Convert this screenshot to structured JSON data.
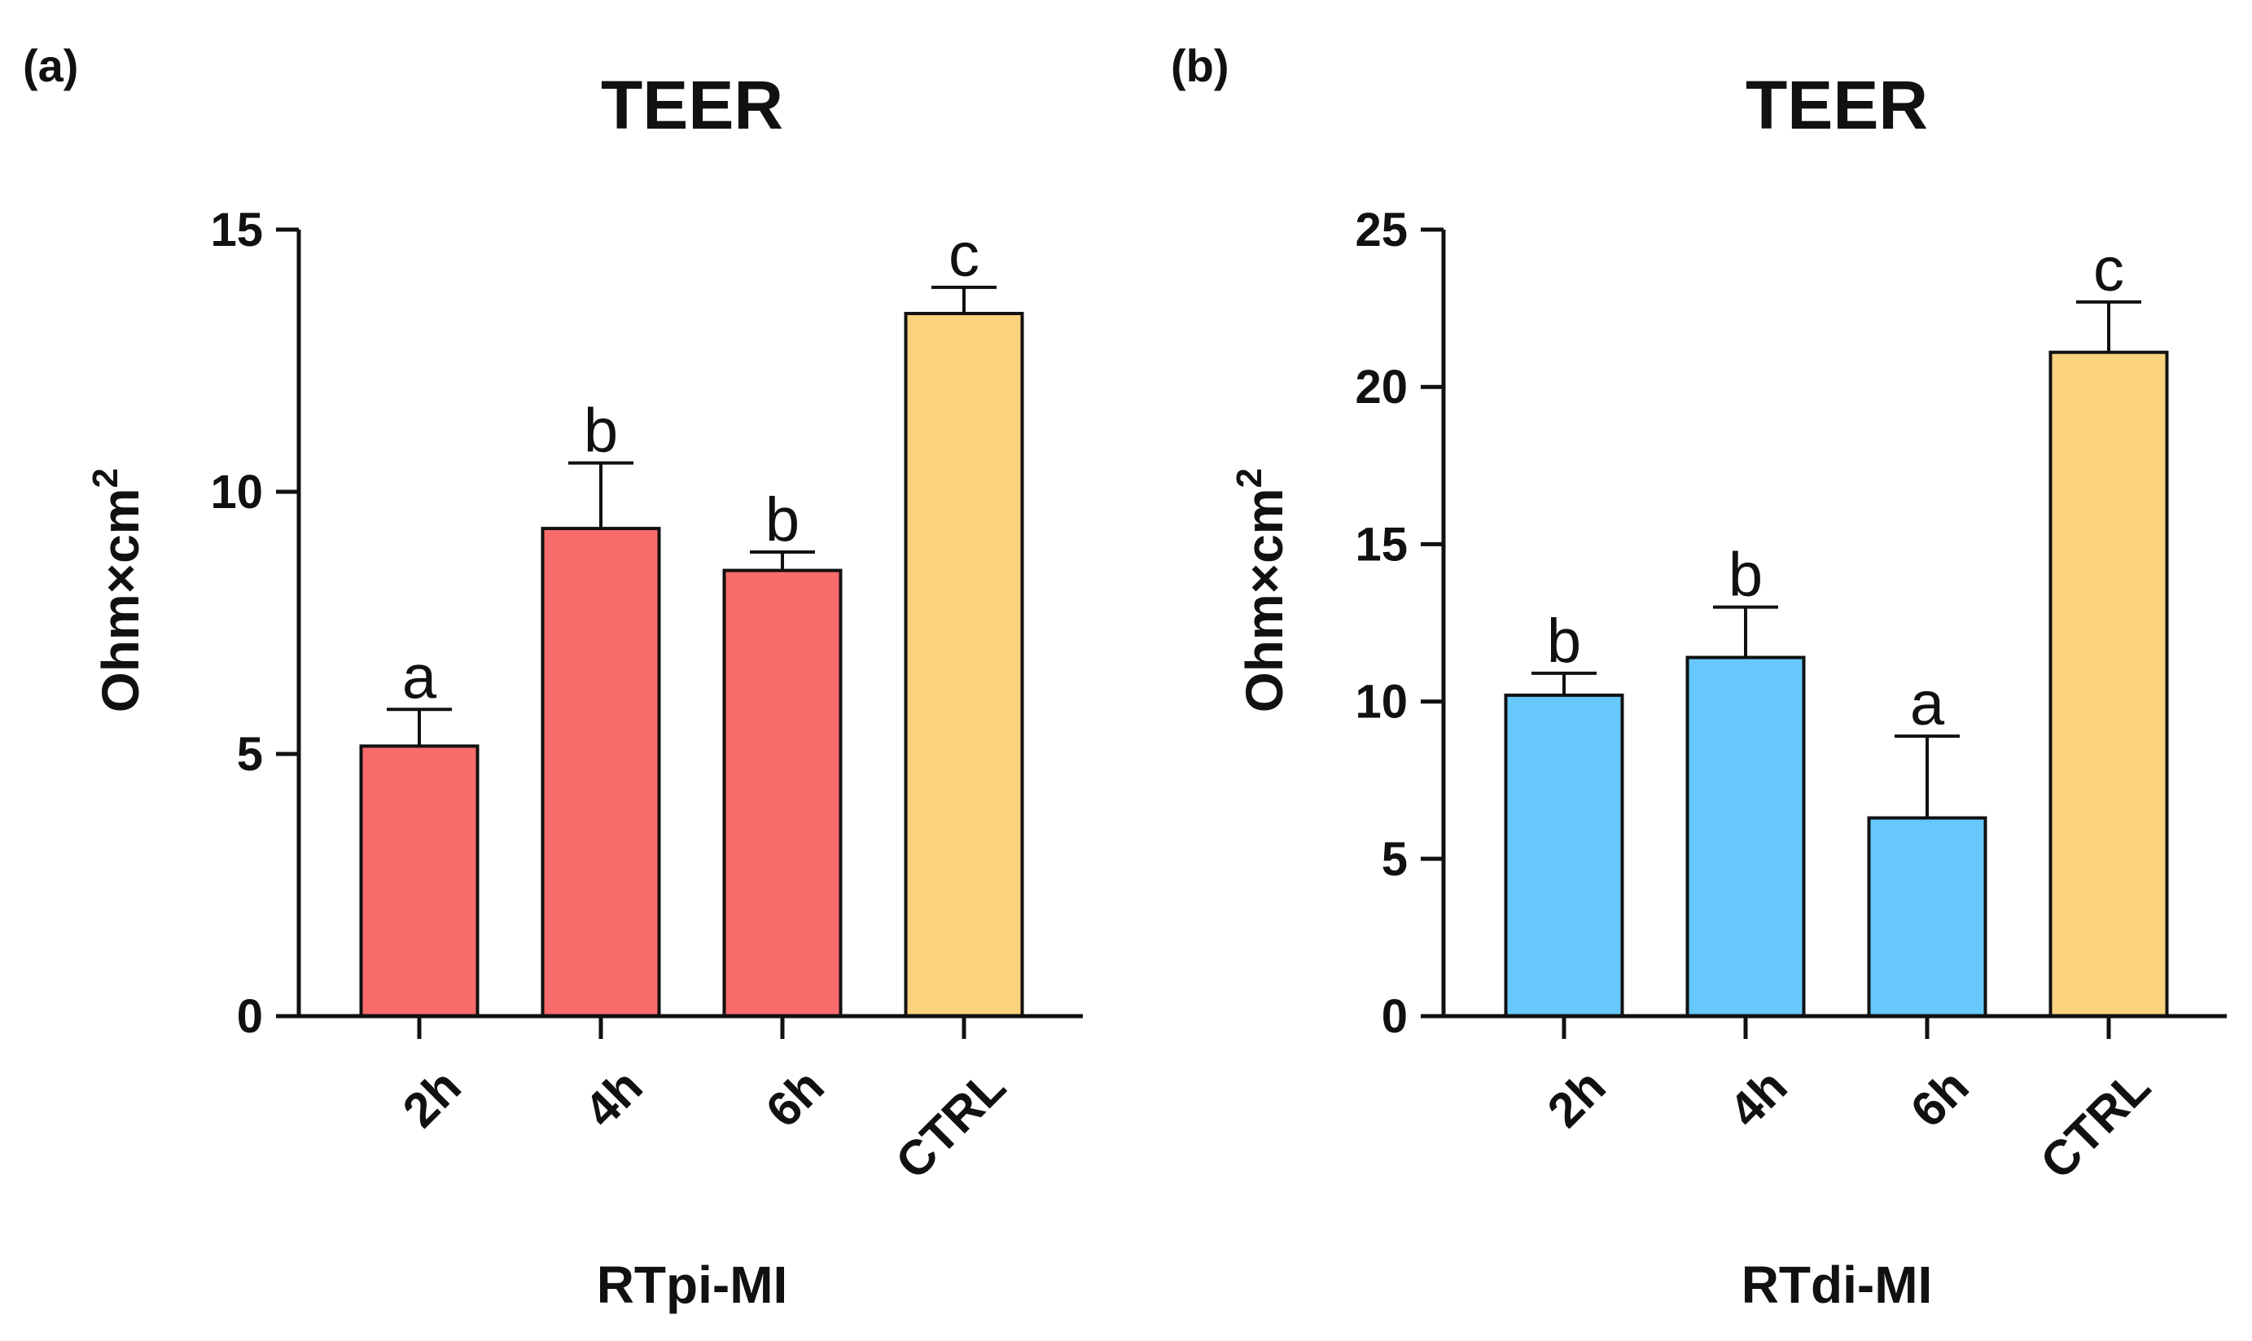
{
  "chart_data": [
    {
      "panel_label": "(a)",
      "type": "bar",
      "title": "TEER",
      "xlabel": "RTpi-MI",
      "ylabel": "Ohm×cm",
      "ylabel_superscript": "2",
      "ylim": [
        0,
        15
      ],
      "yticks": [
        0,
        5,
        10,
        15
      ],
      "grid": false,
      "categories": [
        "2h",
        "4h",
        "6h",
        "CTRL"
      ],
      "values": [
        5.15,
        9.3,
        8.5,
        13.4
      ],
      "errors": [
        0.7,
        1.25,
        0.35,
        0.5
      ],
      "significance": [
        "a",
        "b",
        "b",
        "c"
      ],
      "colors": [
        "#fa6b6b",
        "#fa6b6b",
        "#fa6b6b",
        "#fbd27e"
      ]
    },
    {
      "panel_label": "(b)",
      "type": "bar",
      "title": "TEER",
      "xlabel": "RTdi-MI",
      "ylabel": "Ohm×cm",
      "ylabel_superscript": "2",
      "ylim": [
        0,
        25
      ],
      "yticks": [
        0,
        5,
        10,
        15,
        20,
        25
      ],
      "grid": false,
      "categories": [
        "2h",
        "4h",
        "6h",
        "CTRL"
      ],
      "values": [
        10.2,
        11.4,
        6.3,
        21.1
      ],
      "errors": [
        0.7,
        1.6,
        2.6,
        1.6
      ],
      "significance": [
        "b",
        "b",
        "a",
        "c"
      ],
      "colors": [
        "#66c8fc",
        "#66c8fc",
        "#66c8fc",
        "#fbd27e"
      ]
    }
  ]
}
